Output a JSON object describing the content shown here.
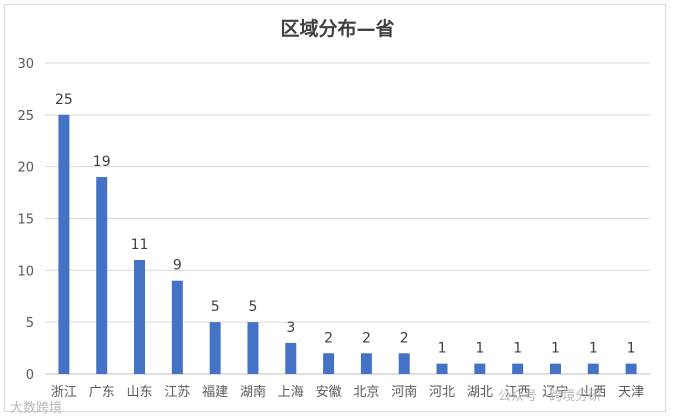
{
  "chart_data": {
    "type": "bar",
    "title": "区域分布—省",
    "categories": [
      "浙江",
      "广东",
      "山东",
      "江苏",
      "福建",
      "湖南",
      "上海",
      "安徽",
      "北京",
      "河南",
      "河北",
      "湖北",
      "江西",
      "辽宁",
      "山西",
      "天津"
    ],
    "values": [
      25,
      19,
      11,
      9,
      5,
      5,
      3,
      2,
      2,
      2,
      1,
      1,
      1,
      1,
      1,
      1
    ],
    "ylim": [
      0,
      30
    ],
    "yticks": [
      0,
      5,
      10,
      15,
      20,
      25,
      30
    ],
    "grid": true,
    "data_labels": true,
    "bar_color": "#4472c4"
  },
  "watermark": {
    "left": "大数跨境",
    "right": "公众号 · 跨境分研"
  }
}
